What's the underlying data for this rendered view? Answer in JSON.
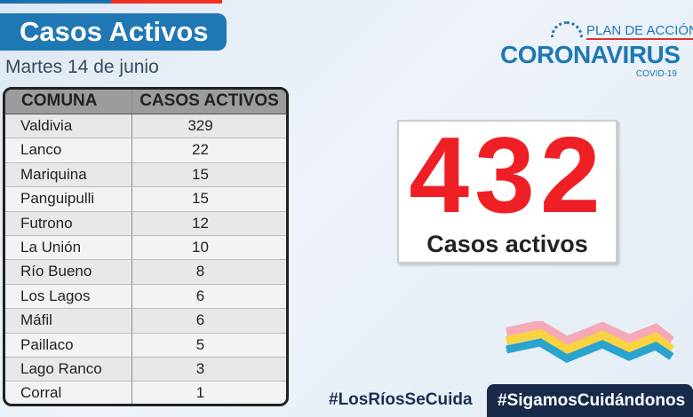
{
  "header": {
    "title": "Casos Activos",
    "date": "Martes 14 de junio"
  },
  "logo": {
    "plan": "PLAN DE ACCIÓN",
    "name": "CORONAVIRUS",
    "sub": "COVID-19"
  },
  "table": {
    "headers": [
      "COMUNA",
      "CASOS ACTIVOS"
    ],
    "rows": [
      [
        "Valdivia",
        "329"
      ],
      [
        "Lanco",
        "22"
      ],
      [
        "Mariquina",
        "15"
      ],
      [
        "Panguipulli",
        "15"
      ],
      [
        "Futrono",
        "12"
      ],
      [
        "La Unión",
        "10"
      ],
      [
        "Río Bueno",
        "8"
      ],
      [
        "Los Lagos",
        "6"
      ],
      [
        "Máfil",
        "6"
      ],
      [
        "Paillaco",
        "5"
      ],
      [
        "Lago Ranco",
        "3"
      ],
      [
        "Corral",
        "1"
      ]
    ]
  },
  "total": {
    "value": "432",
    "label": "Casos activos"
  },
  "hashtags": [
    "#LosRíosSeCuida",
    "#SigamosCuidándonos"
  ]
}
